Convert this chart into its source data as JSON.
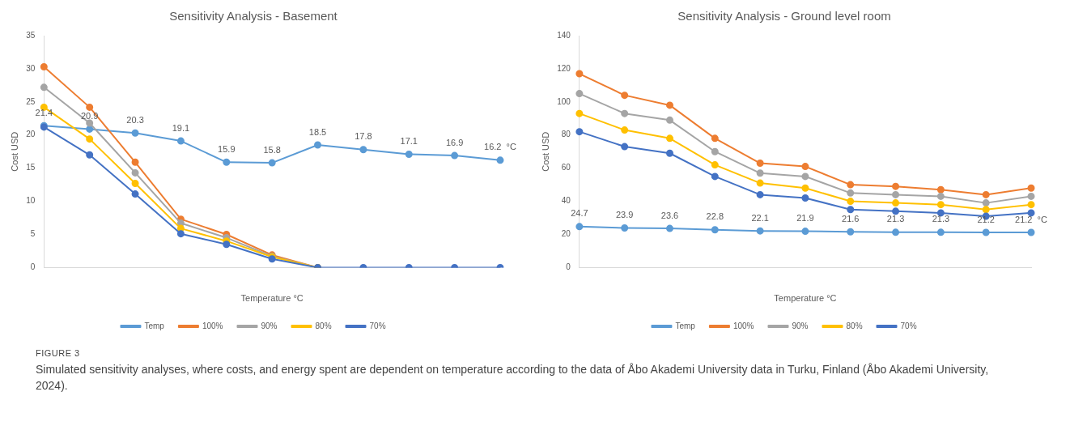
{
  "chart_data": [
    {
      "type": "line",
      "title": "Sensitivity Analysis - Basement",
      "xlabel": "Temperature °C",
      "ylabel": "Cost USD",
      "categories": [
        null,
        null,
        null,
        null,
        null,
        null,
        null,
        null,
        null,
        null,
        null
      ],
      "ylim": [
        0,
        35
      ],
      "yticks": [
        0,
        5,
        10,
        15,
        20,
        25,
        30,
        35
      ],
      "grid": false,
      "legend": "bottom",
      "marker": "circle",
      "line_style": "solid",
      "series": [
        {
          "name": "Temp",
          "color": "#5b9bd5",
          "values": [
            21.4,
            20.9,
            20.3,
            19.1,
            15.9,
            15.8,
            18.5,
            17.8,
            17.1,
            16.9,
            16.2
          ],
          "value_labels": [
            "21.4",
            "20.9",
            "20.3",
            "19.1",
            "15.9",
            "15.8",
            "18.5",
            "17.8",
            "17.1",
            "16.9",
            "16.2  °C"
          ]
        },
        {
          "name": "100%",
          "color": "#ed7d31",
          "values": [
            30.3,
            24.2,
            15.9,
            7.3,
            5.0,
            1.9,
            0,
            null,
            null,
            null,
            null
          ]
        },
        {
          "name": "90%",
          "color": "#a5a5a5",
          "values": [
            27.2,
            21.8,
            14.3,
            6.7,
            4.5,
            1.7,
            0,
            null,
            null,
            null,
            null
          ]
        },
        {
          "name": "80%",
          "color": "#ffc000",
          "values": [
            24.2,
            19.4,
            12.7,
            5.9,
            4.0,
            1.6,
            0,
            null,
            null,
            null,
            null
          ]
        },
        {
          "name": "70%",
          "color": "#4472c4",
          "values": [
            21.2,
            17.0,
            11.1,
            5.1,
            3.5,
            1.3,
            0,
            0,
            0,
            0,
            0
          ]
        }
      ],
      "annotations": [
        "FIGURE 3",
        "Simulated sensitivity analyses, where costs, and energy spent are dependent on temperature according to the data of Åbo Akademi University data in Turku, Finland (Åbo Akademi University, 2024)."
      ]
    },
    {
      "type": "line",
      "title": "Sensitivity Analysis - Ground level room",
      "xlabel": "Temperature °C",
      "ylabel": "Cost USD",
      "categories": [
        null,
        null,
        null,
        null,
        null,
        null,
        null,
        null,
        null,
        null,
        null
      ],
      "ylim": [
        0,
        140
      ],
      "yticks": [
        0,
        20,
        40,
        60,
        80,
        100,
        120,
        140
      ],
      "grid": false,
      "legend": "bottom",
      "marker": "circle",
      "line_style": "solid",
      "series": [
        {
          "name": "Temp",
          "color": "#5b9bd5",
          "values": [
            24.7,
            23.9,
            23.6,
            22.8,
            22.1,
            21.9,
            21.6,
            21.3,
            21.3,
            21.2,
            21.2
          ],
          "value_labels": [
            "24.7",
            "23.9",
            "23.6",
            "22.8",
            "22.1",
            "21.9",
            "21.6",
            "21.3",
            "21.3",
            "21.2",
            "21.2  °C"
          ]
        },
        {
          "name": "100%",
          "color": "#ed7d31",
          "values": [
            117,
            104,
            98,
            78,
            63,
            61,
            50,
            49,
            47,
            44,
            48
          ]
        },
        {
          "name": "90%",
          "color": "#a5a5a5",
          "values": [
            105,
            93,
            89,
            70,
            57,
            55,
            45,
            44,
            43,
            39,
            43
          ]
        },
        {
          "name": "80%",
          "color": "#ffc000",
          "values": [
            93,
            83,
            78,
            62,
            51,
            48,
            40,
            39,
            38,
            35,
            38
          ]
        },
        {
          "name": "70%",
          "color": "#4472c4",
          "values": [
            82,
            73,
            69,
            55,
            44,
            42,
            35,
            34,
            33,
            31,
            33
          ]
        }
      ]
    }
  ]
}
